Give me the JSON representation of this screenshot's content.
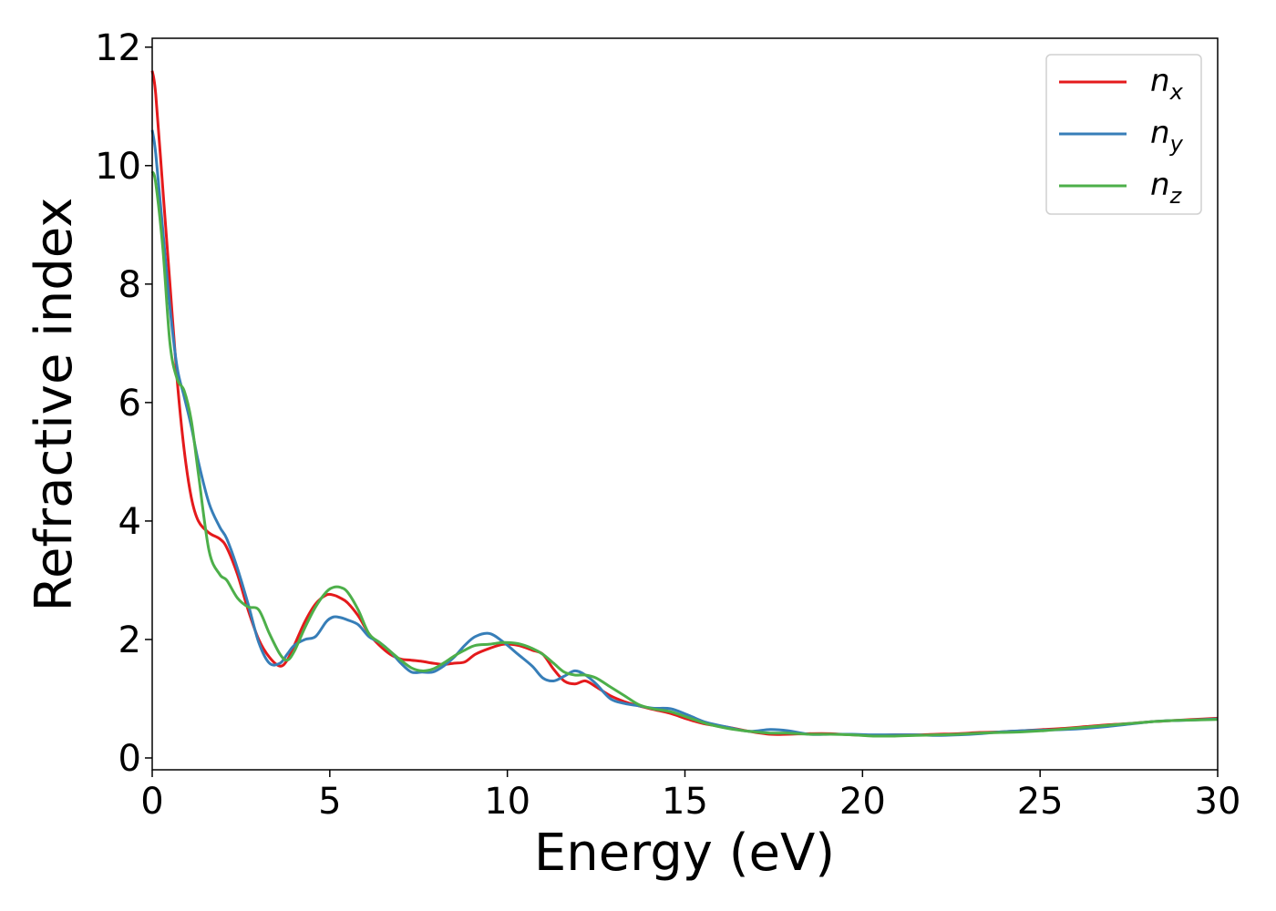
{
  "chart_data": {
    "type": "line",
    "title": "",
    "xlabel": "Energy (eV)",
    "ylabel": "Refractive index",
    "xlim": [
      0,
      30
    ],
    "ylim": [
      -0.2,
      12.15
    ],
    "xticks": [
      "0",
      "5",
      "10",
      "15",
      "20",
      "25",
      "30"
    ],
    "yticks": [
      "0",
      "2",
      "4",
      "6",
      "8",
      "10",
      "12"
    ],
    "grid": false,
    "legend_position": "top-right",
    "series": [
      {
        "name": "n",
        "subscript": "x",
        "color": "#e41a1c",
        "x": [
          0,
          0.1,
          0.3,
          0.5,
          0.7,
          0.9,
          1.1,
          1.3,
          1.6,
          1.9,
          2.1,
          2.4,
          2.7,
          3.0,
          3.3,
          3.6,
          3.8,
          4.0,
          4.3,
          4.6,
          4.9,
          5.1,
          5.3,
          5.5,
          5.8,
          6.1,
          6.4,
          6.7,
          7.0,
          7.3,
          7.6,
          7.9,
          8.2,
          8.5,
          8.8,
          9.1,
          9.5,
          9.9,
          10.3,
          10.7,
          11.0,
          11.3,
          11.6,
          11.9,
          12.2,
          12.5,
          12.9,
          13.3,
          13.7,
          14.1,
          14.6,
          15.1,
          15.6,
          16.2,
          16.8,
          17.4,
          17.9,
          18.5,
          19.1,
          19.7,
          20.3,
          20.9,
          21.5,
          22.1,
          22.7,
          23.3,
          23.9,
          24.5,
          25.1,
          25.7,
          26.3,
          26.9,
          27.5,
          28.1,
          28.7,
          29.3,
          30.0
        ],
        "y": [
          11.6,
          11.2,
          9.6,
          8.0,
          6.4,
          5.2,
          4.4,
          4.0,
          3.8,
          3.7,
          3.55,
          3.1,
          2.5,
          2.0,
          1.7,
          1.55,
          1.65,
          1.9,
          2.3,
          2.6,
          2.75,
          2.75,
          2.7,
          2.62,
          2.4,
          2.1,
          1.9,
          1.75,
          1.67,
          1.65,
          1.63,
          1.6,
          1.58,
          1.6,
          1.62,
          1.75,
          1.85,
          1.92,
          1.9,
          1.82,
          1.75,
          1.5,
          1.3,
          1.25,
          1.3,
          1.2,
          1.05,
          0.95,
          0.88,
          0.82,
          0.75,
          0.65,
          0.57,
          0.52,
          0.45,
          0.4,
          0.4,
          0.41,
          0.41,
          0.39,
          0.38,
          0.39,
          0.39,
          0.4,
          0.41,
          0.43,
          0.44,
          0.46,
          0.48,
          0.5,
          0.53,
          0.56,
          0.58,
          0.61,
          0.63,
          0.65,
          0.67
        ]
      },
      {
        "name": "n",
        "subscript": "y",
        "color": "#377eb8",
        "x": [
          0,
          0.1,
          0.3,
          0.5,
          0.7,
          0.9,
          1.1,
          1.3,
          1.6,
          1.9,
          2.1,
          2.4,
          2.7,
          3.0,
          3.3,
          3.6,
          3.8,
          4.0,
          4.3,
          4.6,
          4.9,
          5.1,
          5.3,
          5.5,
          5.8,
          6.1,
          6.4,
          6.7,
          7.0,
          7.3,
          7.6,
          7.9,
          8.2,
          8.5,
          8.8,
          9.1,
          9.5,
          9.9,
          10.3,
          10.7,
          11.0,
          11.3,
          11.6,
          11.9,
          12.2,
          12.5,
          12.9,
          13.3,
          13.7,
          14.1,
          14.6,
          15.1,
          15.6,
          16.2,
          16.8,
          17.4,
          17.9,
          18.5,
          19.1,
          19.7,
          20.3,
          20.9,
          21.5,
          22.1,
          22.7,
          23.3,
          23.9,
          24.5,
          25.1,
          25.7,
          26.3,
          26.9,
          27.5,
          28.1,
          28.7,
          29.3,
          30.0
        ],
        "y": [
          10.6,
          10.2,
          8.9,
          7.6,
          6.6,
          6.1,
          5.6,
          5.0,
          4.3,
          3.9,
          3.7,
          3.2,
          2.6,
          1.95,
          1.6,
          1.6,
          1.75,
          1.9,
          2.0,
          2.05,
          2.3,
          2.38,
          2.37,
          2.33,
          2.25,
          2.05,
          1.95,
          1.8,
          1.6,
          1.45,
          1.45,
          1.45,
          1.55,
          1.7,
          1.9,
          2.05,
          2.1,
          1.95,
          1.75,
          1.55,
          1.35,
          1.3,
          1.38,
          1.47,
          1.4,
          1.25,
          1.0,
          0.92,
          0.88,
          0.84,
          0.83,
          0.72,
          0.6,
          0.52,
          0.45,
          0.48,
          0.46,
          0.4,
          0.4,
          0.4,
          0.39,
          0.39,
          0.39,
          0.38,
          0.39,
          0.41,
          0.44,
          0.46,
          0.47,
          0.48,
          0.5,
          0.53,
          0.57,
          0.61,
          0.63,
          0.64,
          0.66
        ]
      },
      {
        "name": "n",
        "subscript": "z",
        "color": "#4daf4a",
        "x": [
          0,
          0.1,
          0.3,
          0.5,
          0.7,
          0.9,
          1.1,
          1.3,
          1.6,
          1.9,
          2.1,
          2.4,
          2.7,
          3.0,
          3.3,
          3.6,
          3.8,
          4.0,
          4.3,
          4.6,
          4.9,
          5.1,
          5.3,
          5.5,
          5.8,
          6.1,
          6.4,
          6.7,
          7.0,
          7.3,
          7.6,
          7.9,
          8.2,
          8.5,
          8.8,
          9.1,
          9.5,
          9.9,
          10.3,
          10.7,
          11.0,
          11.3,
          11.6,
          11.9,
          12.2,
          12.5,
          12.9,
          13.3,
          13.7,
          14.1,
          14.6,
          15.1,
          15.6,
          16.2,
          16.8,
          17.4,
          17.9,
          18.5,
          19.1,
          19.7,
          20.3,
          20.9,
          21.5,
          22.1,
          22.7,
          23.3,
          23.9,
          24.5,
          25.1,
          25.7,
          26.3,
          26.9,
          27.5,
          28.1,
          28.7,
          29.3,
          30.0
        ],
        "y": [
          9.9,
          9.7,
          8.6,
          7.0,
          6.4,
          6.2,
          5.7,
          4.8,
          3.5,
          3.1,
          3.0,
          2.7,
          2.55,
          2.5,
          2.1,
          1.75,
          1.65,
          1.8,
          2.2,
          2.55,
          2.8,
          2.88,
          2.88,
          2.8,
          2.5,
          2.1,
          1.95,
          1.8,
          1.65,
          1.52,
          1.47,
          1.5,
          1.6,
          1.72,
          1.82,
          1.9,
          1.92,
          1.95,
          1.93,
          1.85,
          1.75,
          1.6,
          1.45,
          1.4,
          1.4,
          1.35,
          1.2,
          1.05,
          0.9,
          0.83,
          0.78,
          0.68,
          0.58,
          0.5,
          0.45,
          0.42,
          0.42,
          0.4,
          0.4,
          0.39,
          0.37,
          0.37,
          0.38,
          0.39,
          0.4,
          0.42,
          0.43,
          0.44,
          0.46,
          0.49,
          0.52,
          0.55,
          0.58,
          0.61,
          0.63,
          0.64,
          0.65
        ]
      }
    ]
  }
}
